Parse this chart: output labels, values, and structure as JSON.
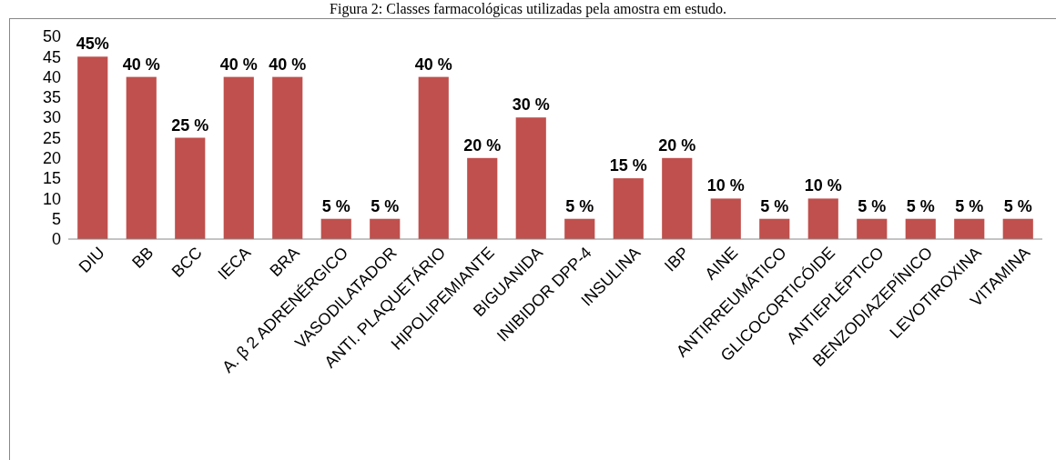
{
  "chart_data": {
    "type": "bar",
    "title": "Figura 2: Classes farmacológicas utilizadas pela amostra em estudo.",
    "categories": [
      "DIU",
      "BB",
      "BCC",
      "IECA",
      "BRA",
      "A. β 2 ADRENÉRGICO",
      "VASODILATADOR",
      "ANTI. PLAQUETÁRIO",
      "HIPOLIPEMIANTE",
      "BIGUANIDA",
      "INIBIDOR DPP-4",
      "INSULINA",
      "IBP",
      "AINE",
      "ANTIRREUMÁTICO",
      "GLICOCORTICÓIDE",
      "ANTIEPLÉPTICO",
      "BENZODIAZEPÍNICO",
      "LEVOTIROXINA",
      "VITAMINA"
    ],
    "values": [
      45,
      40,
      25,
      40,
      40,
      5,
      5,
      40,
      20,
      30,
      5,
      15,
      20,
      10,
      5,
      10,
      5,
      5,
      5,
      5
    ],
    "value_labels": [
      "45%",
      "40 %",
      "25 %",
      "40 %",
      "40 %",
      "5 %",
      "5 %",
      "40 %",
      "20 %",
      "30 %",
      "5 %",
      "15 %",
      "20 %",
      "10 %",
      "5 %",
      "10 %",
      "5 %",
      "5 %",
      "5 %",
      "5 %"
    ],
    "color": "#c0504d",
    "ylim": [
      0,
      50
    ],
    "yticks": [
      0,
      5,
      10,
      15,
      20,
      25,
      30,
      35,
      40,
      45,
      50
    ],
    "grid": false
  }
}
